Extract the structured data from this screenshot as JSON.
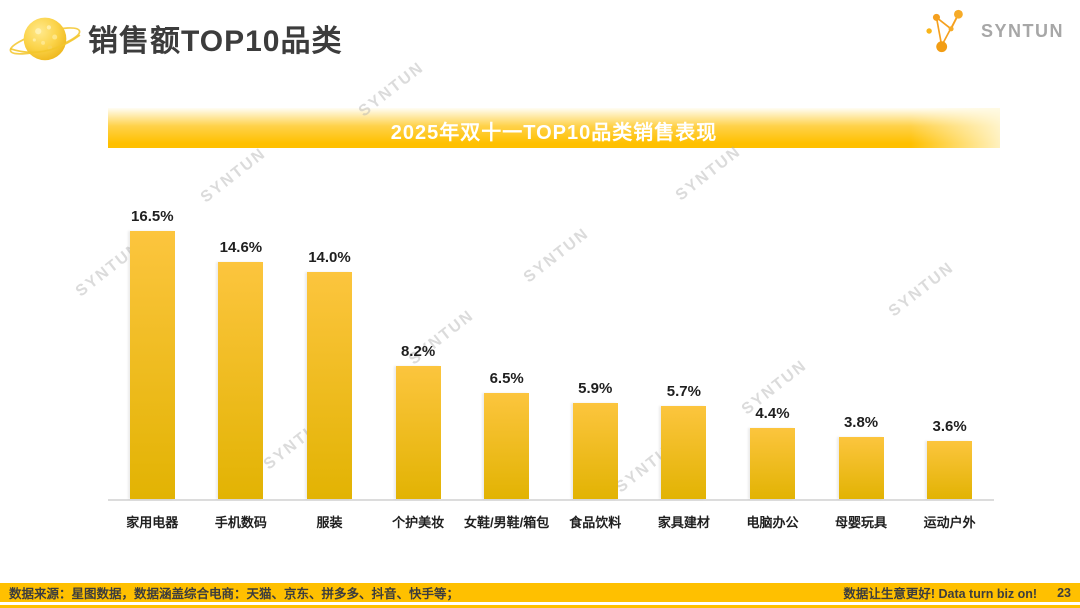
{
  "header": {
    "title": "销售额TOP10品类",
    "logo_text": "SYNTUN"
  },
  "banner": {
    "title": "2025年双十一TOP10品类销售表现"
  },
  "chart_data": {
    "type": "bar",
    "title": "2025年双十一TOP10品类销售表现",
    "categories": [
      "家用电器",
      "手机数码",
      "服装",
      "个护美妆",
      "女鞋/男鞋/箱包",
      "食品饮料",
      "家具建材",
      "电脑办公",
      "母婴玩具",
      "运动户外"
    ],
    "values": [
      16.5,
      14.6,
      14.0,
      8.2,
      6.5,
      5.9,
      5.7,
      4.4,
      3.8,
      3.6
    ],
    "data_labels": [
      "16.5%",
      "14.6%",
      "14.0%",
      "8.2%",
      "6.5%",
      "5.9%",
      "5.7%",
      "4.4%",
      "3.8%",
      "3.6%"
    ],
    "value_unit": "%",
    "xlabel": "",
    "ylabel": "",
    "ylim": [
      0,
      18
    ],
    "grid": false,
    "legend": false,
    "bar_color_top": "#FCC53E",
    "bar_color_bottom": "#E2B303"
  },
  "watermark": {
    "text": "SYNTUN"
  },
  "footer": {
    "source": "数据来源：星图数据，数据涵盖综合电商：天猫、京东、拼多多、抖音、快手等；",
    "slogan": "数据让生意更好! Data turn biz on!",
    "page_number": "23"
  },
  "colors": {
    "accent": "#FFC000",
    "title_text": "#3C3C3C",
    "logo_gray": "#A7A7A7",
    "axis_line": "#DCDCDC"
  }
}
